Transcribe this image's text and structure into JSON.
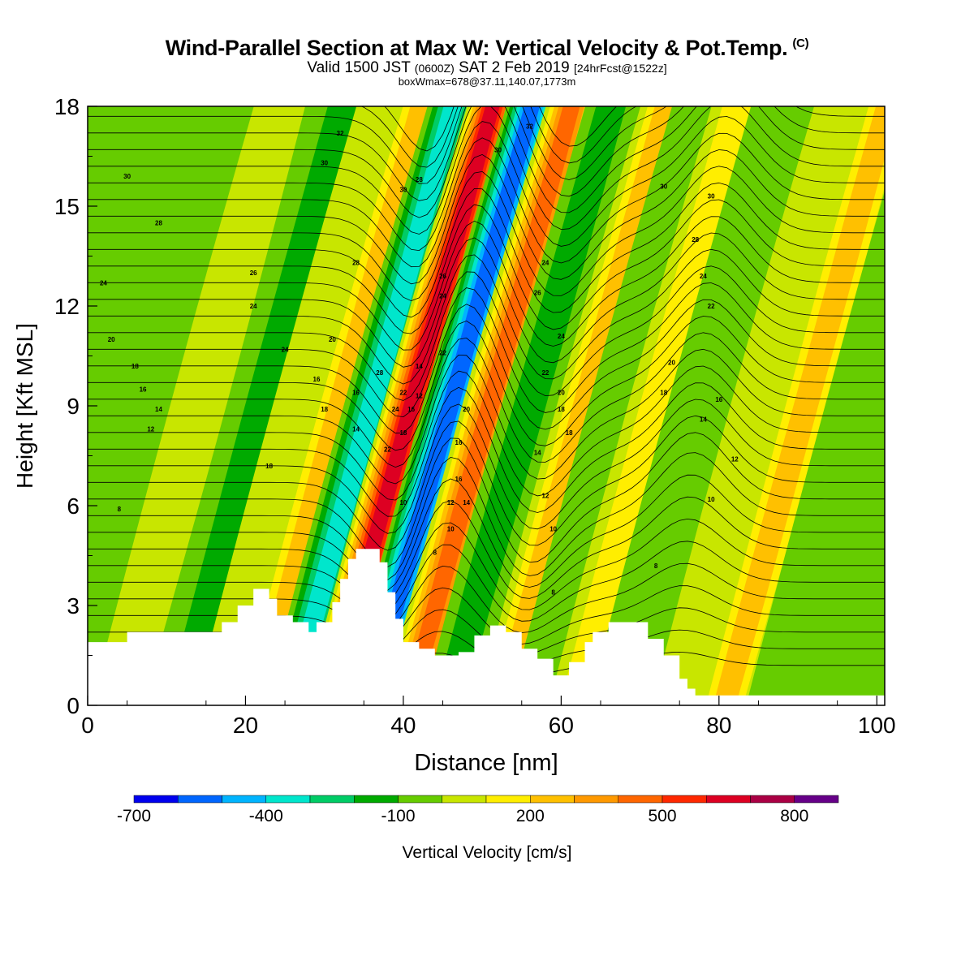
{
  "header": {
    "title": "Wind-Parallel Section at Max W: Vertical Velocity & Pot.Temp.",
    "copyright": "(C)",
    "line2_a": "Valid 1500 JST",
    "line2_b": "(0600Z)",
    "line2_c": "SAT 2 Feb 2019",
    "line2_d": "[24hrFcst@1522z]",
    "line3": "boxWmax=678@37.11,140.07,1773m"
  },
  "chart_data": {
    "type": "heatmap",
    "xlabel": "Distance [nm]",
    "ylabel": "Height [Kft MSL]",
    "xlim": [
      0,
      101
    ],
    "ylim": [
      0,
      18
    ],
    "xticks": [
      0,
      20,
      40,
      60,
      80,
      100
    ],
    "yticks": [
      0,
      3,
      6,
      9,
      12,
      15,
      18
    ],
    "colorbar": {
      "label": "Vertical Velocity [cm/s]",
      "tick_labels": [
        "-700",
        "-400",
        "-100",
        "200",
        "500",
        "800"
      ],
      "tick_values": [
        -700,
        -400,
        -100,
        200,
        500,
        800
      ],
      "range": [
        -700,
        900
      ],
      "colors": [
        "#0000ee",
        "#0066ff",
        "#00b4ff",
        "#00e6cc",
        "#00cc66",
        "#00aa00",
        "#66cc00",
        "#c8e600",
        "#ffee00",
        "#ffc000",
        "#ff9900",
        "#ff6600",
        "#ff2800",
        "#dd0022",
        "#aa0044",
        "#660088"
      ]
    },
    "vertical_velocity_bands": [
      {
        "x": 2,
        "w": -60
      },
      {
        "x": 14,
        "w": 20
      },
      {
        "x": 22,
        "w": -200
      },
      {
        "x": 27,
        "w": 60
      },
      {
        "x": 32,
        "w": 220
      },
      {
        "x": 36,
        "w": -440
      },
      {
        "x": 41,
        "w": 640
      },
      {
        "x": 46,
        "w": -690
      },
      {
        "x": 51,
        "w": 430
      },
      {
        "x": 56,
        "w": -260
      },
      {
        "x": 63,
        "w": 250
      },
      {
        "x": 67,
        "w": -120
      },
      {
        "x": 72,
        "w": 110
      },
      {
        "x": 77,
        "w": -160
      },
      {
        "x": 85,
        "w": 70
      },
      {
        "x": 91,
        "w": 280
      },
      {
        "x": 97,
        "w": -120
      }
    ],
    "terrain_kft": [
      {
        "x": 0,
        "h": 1.9
      },
      {
        "x": 4,
        "h": 1.9
      },
      {
        "x": 5,
        "h": 2.2
      },
      {
        "x": 15,
        "h": 2.2
      },
      {
        "x": 17,
        "h": 2.5
      },
      {
        "x": 19,
        "h": 3.0
      },
      {
        "x": 21,
        "h": 3.5
      },
      {
        "x": 23,
        "h": 3.2
      },
      {
        "x": 24,
        "h": 2.7
      },
      {
        "x": 26,
        "h": 2.5
      },
      {
        "x": 28,
        "h": 2.2
      },
      {
        "x": 29,
        "h": 2.5
      },
      {
        "x": 31,
        "h": 3.1
      },
      {
        "x": 32,
        "h": 3.8
      },
      {
        "x": 33,
        "h": 4.4
      },
      {
        "x": 34,
        "h": 4.7
      },
      {
        "x": 36,
        "h": 4.7
      },
      {
        "x": 37,
        "h": 4.3
      },
      {
        "x": 38,
        "h": 3.4
      },
      {
        "x": 39,
        "h": 2.6
      },
      {
        "x": 40,
        "h": 1.9
      },
      {
        "x": 42,
        "h": 1.7
      },
      {
        "x": 44,
        "h": 1.5
      },
      {
        "x": 47,
        "h": 1.6
      },
      {
        "x": 49,
        "h": 2.1
      },
      {
        "x": 51,
        "h": 2.4
      },
      {
        "x": 53,
        "h": 2.2
      },
      {
        "x": 55,
        "h": 1.7
      },
      {
        "x": 57,
        "h": 1.4
      },
      {
        "x": 59,
        "h": 0.9
      },
      {
        "x": 61,
        "h": 1.3
      },
      {
        "x": 63,
        "h": 1.9
      },
      {
        "x": 64,
        "h": 2.2
      },
      {
        "x": 66,
        "h": 2.5
      },
      {
        "x": 69,
        "h": 2.5
      },
      {
        "x": 71,
        "h": 2.0
      },
      {
        "x": 73,
        "h": 1.5
      },
      {
        "x": 75,
        "h": 0.8
      },
      {
        "x": 76,
        "h": 0.5
      },
      {
        "x": 77,
        "h": 0.3
      },
      {
        "x": 101,
        "h": 0.3
      }
    ],
    "theta_contour_labels": [
      {
        "x": 5,
        "y": 15.9,
        "label": "30"
      },
      {
        "x": 9,
        "y": 14.5,
        "label": "28"
      },
      {
        "x": 2,
        "y": 12.7,
        "label": "24"
      },
      {
        "x": 3,
        "y": 11.0,
        "label": "20"
      },
      {
        "x": 6,
        "y": 10.2,
        "label": "18"
      },
      {
        "x": 7,
        "y": 9.5,
        "label": "16"
      },
      {
        "x": 9,
        "y": 8.9,
        "label": "14"
      },
      {
        "x": 8,
        "y": 8.3,
        "label": "12"
      },
      {
        "x": 4,
        "y": 5.9,
        "label": "8"
      },
      {
        "x": 21,
        "y": 13.0,
        "label": "26"
      },
      {
        "x": 21,
        "y": 12.0,
        "label": "24"
      },
      {
        "x": 25,
        "y": 10.7,
        "label": "24"
      },
      {
        "x": 23,
        "y": 7.2,
        "label": "18"
      },
      {
        "x": 30,
        "y": 16.3,
        "label": "30"
      },
      {
        "x": 32,
        "y": 17.2,
        "label": "32"
      },
      {
        "x": 34,
        "y": 13.3,
        "label": "28"
      },
      {
        "x": 31,
        "y": 11.0,
        "label": "20"
      },
      {
        "x": 29,
        "y": 9.8,
        "label": "16"
      },
      {
        "x": 30,
        "y": 8.9,
        "label": "18"
      },
      {
        "x": 34,
        "y": 9.4,
        "label": "16"
      },
      {
        "x": 34,
        "y": 8.3,
        "label": "14"
      },
      {
        "x": 37,
        "y": 10.0,
        "label": "28"
      },
      {
        "x": 40,
        "y": 15.5,
        "label": "30"
      },
      {
        "x": 42,
        "y": 15.8,
        "label": "28"
      },
      {
        "x": 40,
        "y": 9.4,
        "label": "22"
      },
      {
        "x": 39,
        "y": 8.9,
        "label": "24"
      },
      {
        "x": 41,
        "y": 8.9,
        "label": "16"
      },
      {
        "x": 42,
        "y": 9.3,
        "label": "12"
      },
      {
        "x": 42,
        "y": 10.2,
        "label": "14"
      },
      {
        "x": 40,
        "y": 8.2,
        "label": "18"
      },
      {
        "x": 38,
        "y": 7.7,
        "label": "22"
      },
      {
        "x": 40,
        "y": 6.1,
        "label": "10"
      },
      {
        "x": 45,
        "y": 12.9,
        "label": "26"
      },
      {
        "x": 45,
        "y": 12.3,
        "label": "24"
      },
      {
        "x": 45,
        "y": 10.6,
        "label": "22"
      },
      {
        "x": 48,
        "y": 8.9,
        "label": "20"
      },
      {
        "x": 47,
        "y": 7.9,
        "label": "16"
      },
      {
        "x": 47,
        "y": 6.8,
        "label": "16"
      },
      {
        "x": 46,
        "y": 6.1,
        "label": "12"
      },
      {
        "x": 48,
        "y": 6.1,
        "label": "14"
      },
      {
        "x": 46,
        "y": 5.3,
        "label": "10"
      },
      {
        "x": 44,
        "y": 4.6,
        "label": "8"
      },
      {
        "x": 52,
        "y": 16.7,
        "label": "30"
      },
      {
        "x": 56,
        "y": 17.4,
        "label": "32"
      },
      {
        "x": 58,
        "y": 13.3,
        "label": "24"
      },
      {
        "x": 57,
        "y": 12.4,
        "label": "26"
      },
      {
        "x": 60,
        "y": 11.1,
        "label": "24"
      },
      {
        "x": 58,
        "y": 10.0,
        "label": "22"
      },
      {
        "x": 60,
        "y": 9.4,
        "label": "20"
      },
      {
        "x": 60,
        "y": 8.9,
        "label": "18"
      },
      {
        "x": 61,
        "y": 8.2,
        "label": "18"
      },
      {
        "x": 57,
        "y": 7.6,
        "label": "14"
      },
      {
        "x": 58,
        "y": 6.3,
        "label": "12"
      },
      {
        "x": 59,
        "y": 5.3,
        "label": "10"
      },
      {
        "x": 59,
        "y": 3.4,
        "label": "8"
      },
      {
        "x": 73,
        "y": 15.6,
        "label": "30"
      },
      {
        "x": 79,
        "y": 15.3,
        "label": "30"
      },
      {
        "x": 77,
        "y": 14.0,
        "label": "28"
      },
      {
        "x": 78,
        "y": 12.9,
        "label": "24"
      },
      {
        "x": 79,
        "y": 12.0,
        "label": "22"
      },
      {
        "x": 74,
        "y": 10.3,
        "label": "20"
      },
      {
        "x": 73,
        "y": 9.4,
        "label": "18"
      },
      {
        "x": 80,
        "y": 9.2,
        "label": "16"
      },
      {
        "x": 78,
        "y": 8.6,
        "label": "14"
      },
      {
        "x": 82,
        "y": 7.4,
        "label": "12"
      },
      {
        "x": 79,
        "y": 6.2,
        "label": "10"
      },
      {
        "x": 72,
        "y": 4.2,
        "label": "8"
      }
    ]
  }
}
